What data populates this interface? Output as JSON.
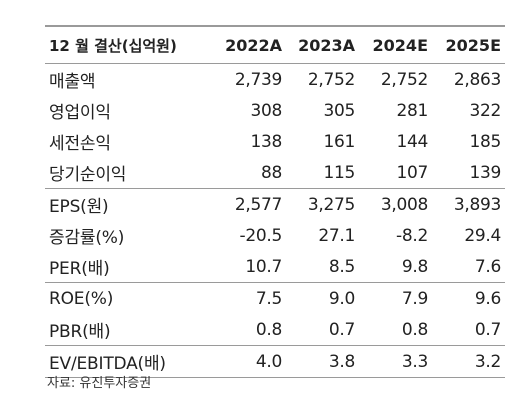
{
  "table": {
    "header": {
      "label": "12 월 결산(십억원)",
      "years": [
        "2022A",
        "2023A",
        "2024E",
        "2025E"
      ]
    },
    "rows": [
      {
        "label": "매출액",
        "values": [
          "2,739",
          "2,752",
          "2,752",
          "2,863"
        ]
      },
      {
        "label": "영업이익",
        "values": [
          "308",
          "305",
          "281",
          "322"
        ]
      },
      {
        "label": "세전손익",
        "values": [
          "138",
          "161",
          "144",
          "185"
        ]
      },
      {
        "label": "당기순이익",
        "values": [
          "88",
          "115",
          "107",
          "139"
        ]
      },
      {
        "label": "EPS(원)",
        "values": [
          "2,577",
          "3,275",
          "3,008",
          "3,893"
        ]
      },
      {
        "label": "증감률(%)",
        "values": [
          "-20.5",
          "27.1",
          "-8.2",
          "29.4"
        ]
      },
      {
        "label": "PER(배)",
        "values": [
          "10.7",
          "8.5",
          "9.8",
          "7.6"
        ]
      },
      {
        "label": "ROE(%)",
        "values": [
          "7.5",
          "9.0",
          "7.9",
          "9.6"
        ]
      },
      {
        "label": "PBR(배)",
        "values": [
          "0.8",
          "0.7",
          "0.8",
          "0.7"
        ]
      },
      {
        "label": "EV/EBITDA(배)",
        "values": [
          "4.0",
          "3.8",
          "3.3",
          "3.2"
        ]
      }
    ]
  },
  "source": "자료: 유진투자증권"
}
